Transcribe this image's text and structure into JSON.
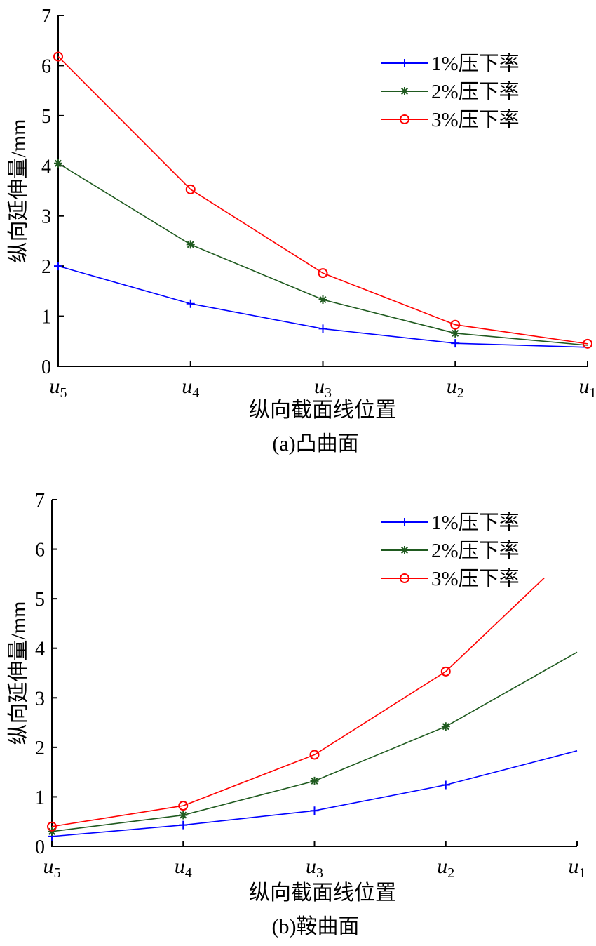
{
  "chart_data": [
    {
      "type": "line",
      "title": "",
      "caption": "(a)凸曲面",
      "xlabel": "纵向截面线位置",
      "ylabel": "纵向延伸量/mm",
      "ylim": [
        0,
        7
      ],
      "yticks": [
        0,
        1,
        2,
        3,
        4,
        5,
        6,
        7
      ],
      "categories": [
        {
          "base": "u",
          "sub": "5"
        },
        {
          "base": "u",
          "sub": "4"
        },
        {
          "base": "u",
          "sub": "3"
        },
        {
          "base": "u",
          "sub": "2"
        },
        {
          "base": "u",
          "sub": "1"
        }
      ],
      "grid": false,
      "legend_position": "top-right",
      "series": [
        {
          "name": "1%压下率",
          "color": "#0000ff",
          "marker": "plus",
          "x": [
            0,
            1,
            2,
            3,
            4
          ],
          "values": [
            2.0,
            1.25,
            0.75,
            0.46,
            0.38
          ]
        },
        {
          "name": "2%压下率",
          "color": "#1f5a1f",
          "marker": "star",
          "x": [
            0,
            1,
            2,
            3,
            4
          ],
          "values": [
            4.05,
            2.43,
            1.33,
            0.66,
            0.42
          ]
        },
        {
          "name": "3%压下率",
          "color": "#ff0000",
          "marker": "circle",
          "x": [
            0,
            1,
            2,
            3,
            4
          ],
          "values": [
            6.18,
            3.53,
            1.86,
            0.83,
            0.45
          ]
        }
      ]
    },
    {
      "type": "line",
      "title": "",
      "caption": "(b)鞍曲面",
      "xlabel": "纵向截面线位置",
      "ylabel": "纵向延伸量/mm",
      "ylim": [
        0,
        7
      ],
      "yticks": [
        0,
        1,
        2,
        3,
        4,
        5,
        6,
        7
      ],
      "categories": [
        {
          "base": "u",
          "sub": "5"
        },
        {
          "base": "u",
          "sub": "4"
        },
        {
          "base": "u",
          "sub": "3"
        },
        {
          "base": "u",
          "sub": "2"
        },
        {
          "base": "u",
          "sub": "1"
        }
      ],
      "grid": false,
      "legend_position": "top-right",
      "series": [
        {
          "name": "1%压下率",
          "color": "#0000ff",
          "marker": "plus",
          "x": [
            0,
            1,
            2,
            3,
            4
          ],
          "values": [
            0.2,
            0.43,
            0.72,
            1.24,
            1.93
          ]
        },
        {
          "name": "2%压下率",
          "color": "#1f5a1f",
          "marker": "star",
          "x": [
            0,
            1,
            2,
            3,
            4
          ],
          "values": [
            0.3,
            0.63,
            1.32,
            2.42,
            3.92
          ]
        },
        {
          "name": "3%压下率",
          "color": "#ff0000",
          "marker": "circle",
          "x": [
            0,
            1,
            2,
            3,
            3.75
          ],
          "values": [
            0.4,
            0.82,
            1.85,
            3.53,
            5.42
          ]
        }
      ]
    }
  ]
}
